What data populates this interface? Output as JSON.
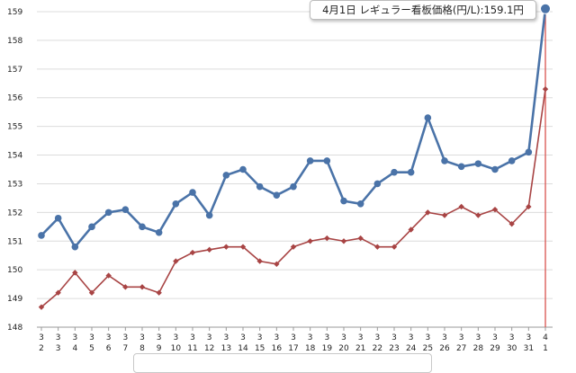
{
  "tooltip": {
    "text": "4月1日 レギュラー看板価格(円/L):159.1円"
  },
  "chart_data": {
    "type": "line",
    "ylim": [
      148,
      159
    ],
    "yticks": [
      "148",
      "149",
      "150",
      "151",
      "152",
      "153",
      "154",
      "155",
      "156",
      "157",
      "158",
      "159"
    ],
    "x_month": [
      "3",
      "3",
      "3",
      "3",
      "3",
      "3",
      "3",
      "3",
      "3",
      "3",
      "3",
      "3",
      "3",
      "3",
      "3",
      "3",
      "3",
      "3",
      "3",
      "3",
      "3",
      "3",
      "3",
      "3",
      "3",
      "3",
      "3",
      "3",
      "3",
      "3",
      "4"
    ],
    "x_day": [
      "2",
      "3",
      "4",
      "5",
      "6",
      "7",
      "8",
      "9",
      "10",
      "11",
      "12",
      "13",
      "14",
      "15",
      "16",
      "17",
      "18",
      "19",
      "20",
      "21",
      "22",
      "23",
      "24",
      "25",
      "26",
      "27",
      "28",
      "29",
      "30",
      "31",
      "1"
    ],
    "grid": true,
    "highlight_index": 30,
    "series": [
      {
        "color": "#4a73a8",
        "marker": "circle",
        "values": [
          151.2,
          151.8,
          150.8,
          151.5,
          152.0,
          152.1,
          151.5,
          151.3,
          152.3,
          152.7,
          151.9,
          153.3,
          153.5,
          152.9,
          152.6,
          152.9,
          153.8,
          153.8,
          152.4,
          152.3,
          153.0,
          153.4,
          153.4,
          155.3,
          153.8,
          153.6,
          153.7,
          153.5,
          153.8,
          154.1,
          159.1
        ]
      },
      {
        "color": "#a84444",
        "marker": "diamond",
        "values": [
          148.7,
          149.2,
          149.9,
          149.2,
          149.8,
          149.4,
          149.4,
          149.2,
          150.3,
          150.6,
          150.7,
          150.8,
          150.8,
          150.3,
          150.2,
          150.8,
          151.0,
          151.1,
          151.0,
          151.1,
          150.8,
          150.8,
          151.4,
          152.0,
          151.9,
          152.2,
          151.9,
          152.1,
          151.6,
          152.2,
          156.3
        ]
      }
    ]
  }
}
